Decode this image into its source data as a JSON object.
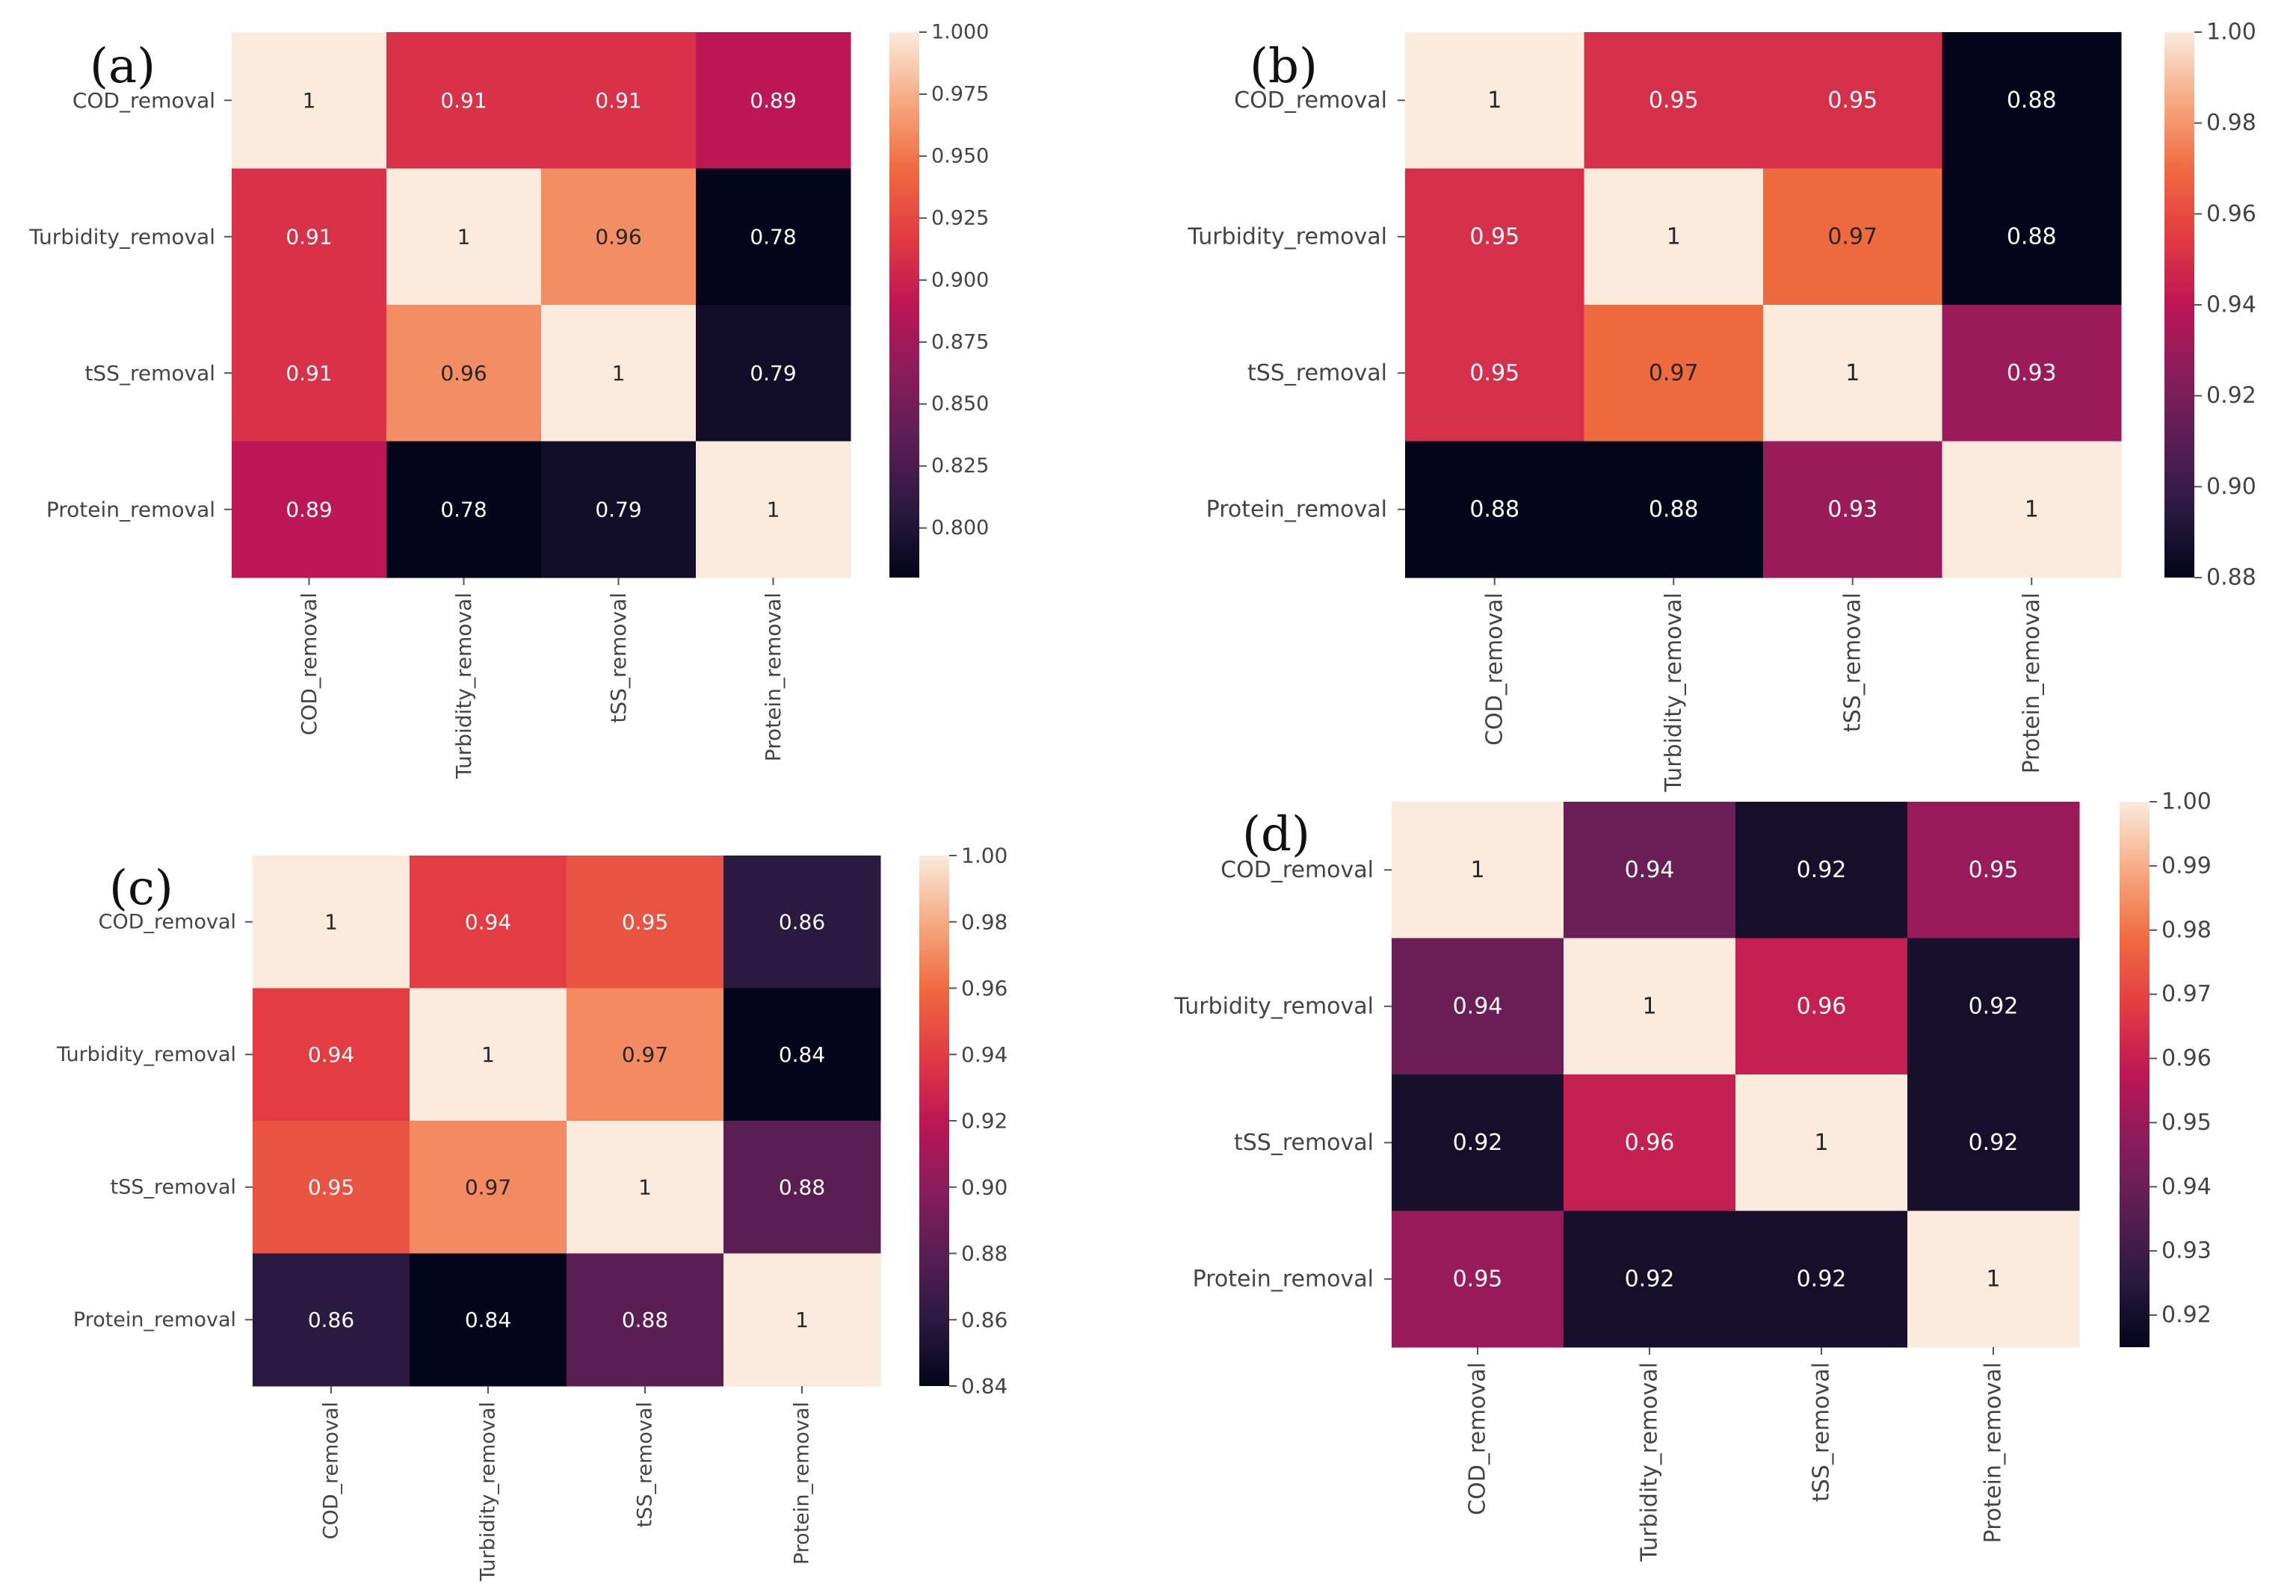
{
  "figure": {
    "panels_count": 4
  },
  "chart_data": [
    {
      "type": "heatmap",
      "panel_label": "(a)",
      "rows": [
        "COD_removal",
        "Turbidity_removal",
        "tSS_removal",
        "Protein_removal"
      ],
      "cols": [
        "COD_removal",
        "Turbidity_removal",
        "tSS_removal",
        "Protein_removal"
      ],
      "values": [
        [
          1,
          0.91,
          0.91,
          0.89
        ],
        [
          0.91,
          1,
          0.96,
          0.78
        ],
        [
          0.91,
          0.96,
          1,
          0.79
        ],
        [
          0.89,
          0.78,
          0.79,
          1
        ]
      ],
      "value_labels": [
        [
          "1",
          "0.91",
          "0.91",
          "0.89"
        ],
        [
          "0.91",
          "1",
          "0.96",
          "0.78"
        ],
        [
          "0.91",
          "0.96",
          "1",
          "0.79"
        ],
        [
          "0.89",
          "0.78",
          "0.79",
          "1"
        ]
      ],
      "vmin": 0.78,
      "vmax": 1.0,
      "colorbar_ticks": [
        1.0,
        0.975,
        0.95,
        0.925,
        0.9,
        0.875,
        0.85,
        0.825,
        0.8
      ],
      "colorbar_tick_labels": [
        "1.000",
        "0.975",
        "0.950",
        "0.925",
        "0.900",
        "0.875",
        "0.850",
        "0.825",
        "0.800"
      ]
    },
    {
      "type": "heatmap",
      "panel_label": "(b)",
      "rows": [
        "COD_removal",
        "Turbidity_removal",
        "tSS_removal",
        "Protein_removal"
      ],
      "cols": [
        "COD_removal",
        "Turbidity_removal",
        "tSS_removal",
        "Protein_removal"
      ],
      "values": [
        [
          1,
          0.95,
          0.95,
          0.88
        ],
        [
          0.95,
          1,
          0.97,
          0.88
        ],
        [
          0.95,
          0.97,
          1,
          0.93
        ],
        [
          0.88,
          0.88,
          0.93,
          1
        ]
      ],
      "value_labels": [
        [
          "1",
          "0.95",
          "0.95",
          "0.88"
        ],
        [
          "0.95",
          "1",
          "0.97",
          "0.88"
        ],
        [
          "0.95",
          "0.97",
          "1",
          "0.93"
        ],
        [
          "0.88",
          "0.88",
          "0.93",
          "1"
        ]
      ],
      "vmin": 0.88,
      "vmax": 1.0,
      "colorbar_ticks": [
        1.0,
        0.98,
        0.96,
        0.94,
        0.92,
        0.9,
        0.88
      ],
      "colorbar_tick_labels": [
        "1.00",
        "0.98",
        "0.96",
        "0.94",
        "0.92",
        "0.90",
        "0.88"
      ]
    },
    {
      "type": "heatmap",
      "panel_label": "(c)",
      "rows": [
        "COD_removal",
        "Turbidity_removal",
        "tSS_removal",
        "Protein_removal"
      ],
      "cols": [
        "COD_removal",
        "Turbidity_removal",
        "tSS_removal",
        "Protein_removal"
      ],
      "values": [
        [
          1,
          0.94,
          0.95,
          0.86
        ],
        [
          0.94,
          1,
          0.97,
          0.84
        ],
        [
          0.95,
          0.97,
          1,
          0.88
        ],
        [
          0.86,
          0.84,
          0.88,
          1
        ]
      ],
      "value_labels": [
        [
          "1",
          "0.94",
          "0.95",
          "0.86"
        ],
        [
          "0.94",
          "1",
          "0.97",
          "0.84"
        ],
        [
          "0.95",
          "0.97",
          "1",
          "0.88"
        ],
        [
          "0.86",
          "0.84",
          "0.88",
          "1"
        ]
      ],
      "vmin": 0.84,
      "vmax": 1.0,
      "colorbar_ticks": [
        1.0,
        0.98,
        0.96,
        0.94,
        0.92,
        0.9,
        0.88,
        0.86,
        0.84
      ],
      "colorbar_tick_labels": [
        "1.00",
        "0.98",
        "0.96",
        "0.94",
        "0.92",
        "0.90",
        "0.88",
        "0.86",
        "0.84"
      ]
    },
    {
      "type": "heatmap",
      "panel_label": "(d)",
      "rows": [
        "COD_removal",
        "Turbidity_removal",
        "tSS_removal",
        "Protein_removal"
      ],
      "cols": [
        "COD_removal",
        "Turbidity_removal",
        "tSS_removal",
        "Protein_removal"
      ],
      "values": [
        [
          1,
          0.94,
          0.92,
          0.95
        ],
        [
          0.94,
          1,
          0.96,
          0.92
        ],
        [
          0.92,
          0.96,
          1,
          0.92
        ],
        [
          0.95,
          0.92,
          0.92,
          1
        ]
      ],
      "value_labels": [
        [
          "1",
          "0.94",
          "0.92",
          "0.95"
        ],
        [
          "0.94",
          "1",
          "0.96",
          "0.92"
        ],
        [
          "0.92",
          "0.96",
          "1",
          "0.92"
        ],
        [
          "0.95",
          "0.92",
          "0.92",
          "1"
        ]
      ],
      "vmin": 0.915,
      "vmax": 1.0,
      "colorbar_ticks": [
        1.0,
        0.99,
        0.98,
        0.97,
        0.96,
        0.95,
        0.94,
        0.93,
        0.92
      ],
      "colorbar_tick_labels": [
        "1.00",
        "0.99",
        "0.98",
        "0.97",
        "0.96",
        "0.95",
        "0.94",
        "0.93",
        "0.92"
      ]
    }
  ]
}
